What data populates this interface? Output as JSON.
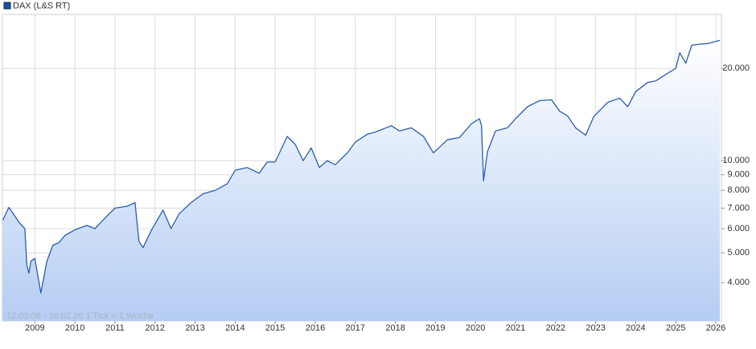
{
  "chart_data": {
    "type": "line",
    "title": "DAX (L&S RT)",
    "footnote": "12.03.08 - 18.02.26   1 Tick = 1 Woche",
    "log_scale": true,
    "grid": true,
    "x": [
      2008.2,
      2008.35,
      2008.45,
      2008.6,
      2008.75,
      2008.8,
      2008.85,
      2008.9,
      2009.0,
      2009.15,
      2009.3,
      2009.45,
      2009.6,
      2009.75,
      2010.0,
      2010.3,
      2010.5,
      2010.8,
      2011.0,
      2011.3,
      2011.5,
      2011.6,
      2011.7,
      2011.9,
      2012.2,
      2012.4,
      2012.6,
      2012.9,
      2013.2,
      2013.5,
      2013.8,
      2014.0,
      2014.3,
      2014.6,
      2014.8,
      2015.0,
      2015.3,
      2015.5,
      2015.7,
      2015.9,
      2016.1,
      2016.3,
      2016.5,
      2016.8,
      2017.0,
      2017.3,
      2017.5,
      2017.9,
      2018.1,
      2018.4,
      2018.7,
      2018.95,
      2019.3,
      2019.6,
      2019.9,
      2020.1,
      2020.15,
      2020.2,
      2020.3,
      2020.5,
      2020.8,
      2021.0,
      2021.3,
      2021.6,
      2021.9,
      2022.1,
      2022.3,
      2022.5,
      2022.75,
      2022.95,
      2023.3,
      2023.6,
      2023.8,
      2024.0,
      2024.3,
      2024.5,
      2024.8,
      2025.0,
      2025.1,
      2025.25,
      2025.4,
      2025.6,
      2025.8,
      2026.0,
      2026.1
    ],
    "series": [
      {
        "name": "DAX (L&S RT)",
        "color": "#2a5db0",
        "values": [
          6400,
          7040,
          6750,
          6300,
          6000,
          4560,
          4300,
          4700,
          4800,
          3700,
          4700,
          5300,
          5400,
          5700,
          5950,
          6150,
          6000,
          6600,
          7000,
          7100,
          7300,
          5450,
          5200,
          5900,
          6900,
          6000,
          6700,
          7300,
          7800,
          8000,
          8400,
          9300,
          9500,
          9100,
          9900,
          9900,
          12000,
          11300,
          10000,
          11000,
          9500,
          10000,
          9700,
          10600,
          11500,
          12200,
          12400,
          13000,
          12500,
          12800,
          12000,
          10600,
          11700,
          11900,
          13200,
          13700,
          13000,
          8600,
          10700,
          12500,
          12800,
          13700,
          15000,
          15700,
          15800,
          14500,
          14000,
          12800,
          12100,
          13900,
          15500,
          16000,
          15000,
          16800,
          18000,
          18200,
          19300,
          20000,
          22500,
          20800,
          23800,
          24000,
          24100,
          24500,
          24700
        ]
      }
    ],
    "xlim": [
      2008.19,
      2026.14
    ],
    "xticks": [
      2009,
      2010,
      2011,
      2012,
      2013,
      2014,
      2015,
      2016,
      2017,
      2018,
      2019,
      2020,
      2021,
      2022,
      2023,
      2024,
      2025,
      2026
    ],
    "ylim": [
      3000,
      30000
    ],
    "yticks": [
      {
        "value": 4000,
        "label": "4.000"
      },
      {
        "value": 5000,
        "label": "5.000"
      },
      {
        "value": 6000,
        "label": "6.000"
      },
      {
        "value": 7000,
        "label": "7.000"
      },
      {
        "value": 8000,
        "label": "8.000"
      },
      {
        "value": 9000,
        "label": "9.000"
      },
      {
        "value": 10000,
        "label": "10.000"
      },
      {
        "value": 20000,
        "label": "20.000"
      }
    ]
  }
}
